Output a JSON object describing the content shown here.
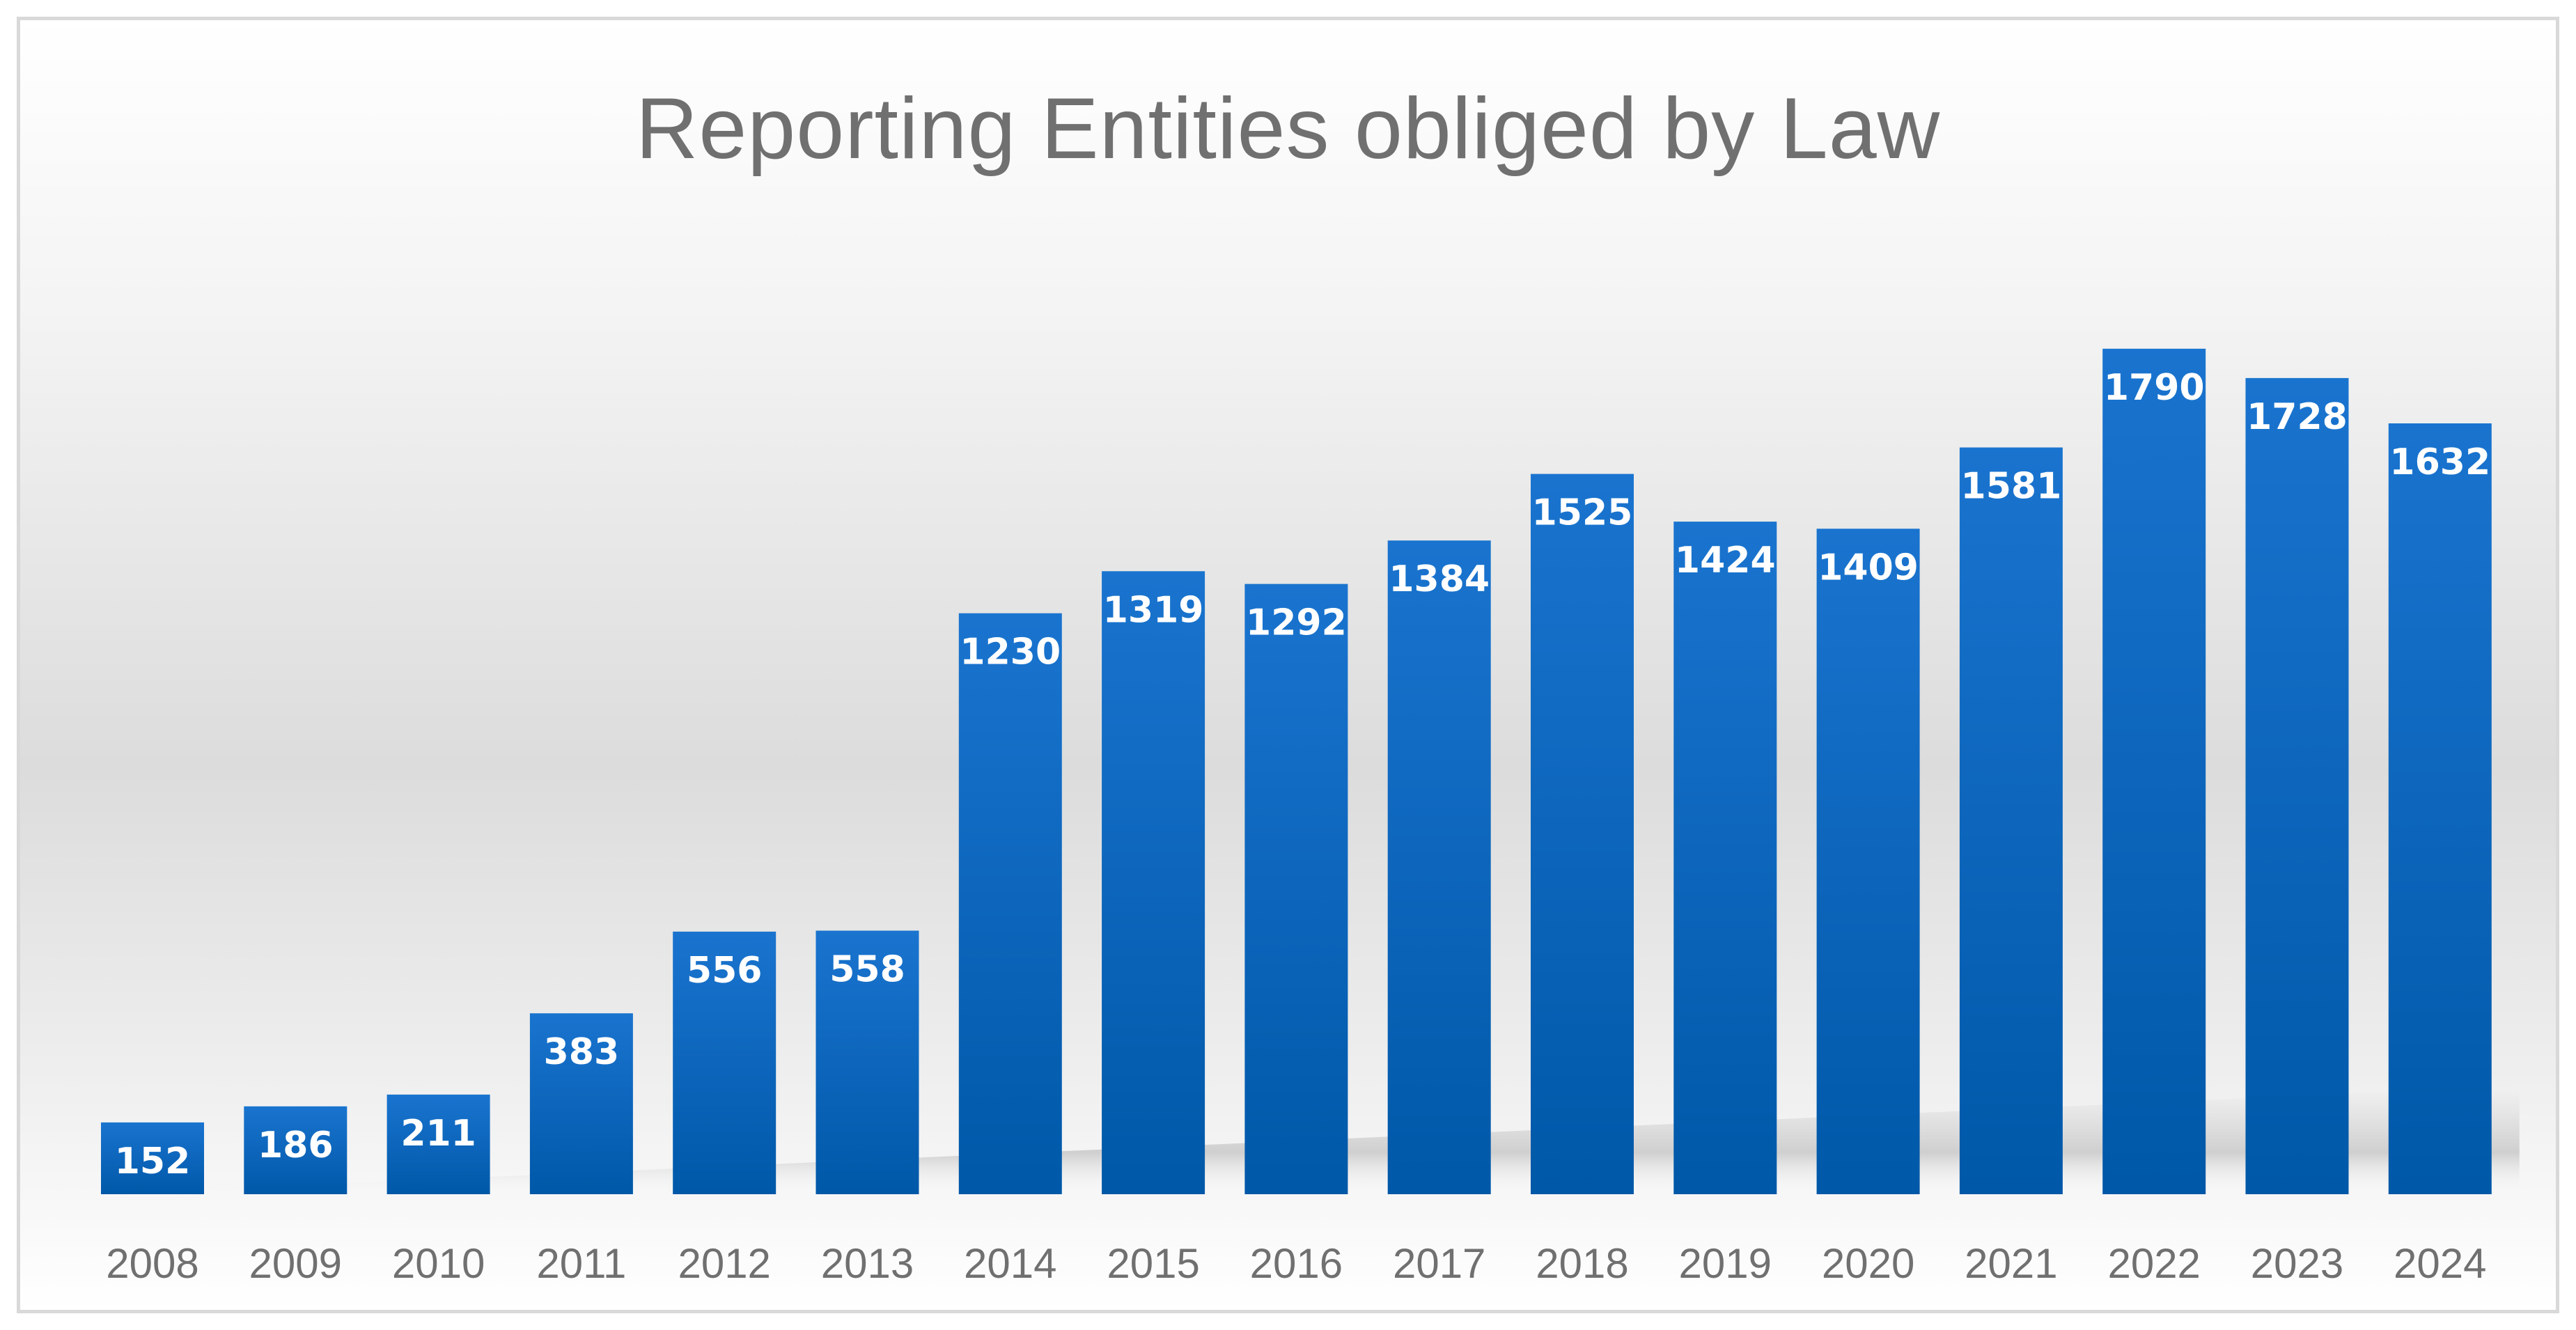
{
  "chart_data": {
    "type": "bar",
    "title": "Reporting Entities obliged by Law",
    "xlabel": "",
    "ylabel": "",
    "ylim": [
      0,
      1800
    ],
    "grid": false,
    "legend": "none",
    "categories": [
      "2008",
      "2009",
      "2010",
      "2011",
      "2012",
      "2013",
      "2014",
      "2015",
      "2016",
      "2017",
      "2018",
      "2019",
      "2020",
      "2021",
      "2022",
      "2023",
      "2024"
    ],
    "values": [
      152,
      186,
      211,
      383,
      556,
      558,
      1230,
      1319,
      1292,
      1384,
      1525,
      1424,
      1409,
      1581,
      1790,
      1728,
      1632
    ],
    "colors": {
      "bar_top": "#1a74cf",
      "bar_bottom": "#0058a8",
      "label": "#ffffff",
      "title": "#707070",
      "ticks": "#707070"
    }
  }
}
